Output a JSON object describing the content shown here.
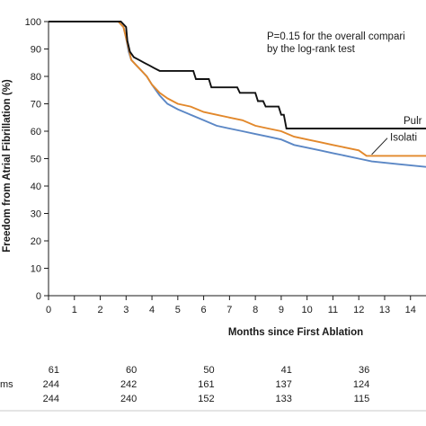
{
  "chart_data": {
    "type": "line",
    "title": "",
    "xlabel": "Months since First Ablation",
    "ylabel": "Freedom from Atrial Fibrillation (%)",
    "xlim": [
      0,
      14.6
    ],
    "ylim": [
      0,
      100
    ],
    "x_ticks": [
      "0",
      "1",
      "2",
      "3",
      "4",
      "5",
      "6",
      "7",
      "8",
      "9",
      "10",
      "11",
      "12",
      "13",
      "14"
    ],
    "y_ticks": [
      "0",
      "10",
      "20",
      "30",
      "40",
      "50",
      "60",
      "70",
      "80",
      "90",
      "100"
    ],
    "grid": false,
    "annotation": [
      "P=0.15 for the overall compari",
      "by the log-rank test"
    ],
    "series": [
      {
        "name": "Pulr",
        "color": "#111111",
        "points": [
          [
            0,
            100
          ],
          [
            2.8,
            100
          ],
          [
            3.0,
            98
          ],
          [
            3.05,
            93
          ],
          [
            3.15,
            89
          ],
          [
            3.3,
            87
          ],
          [
            3.5,
            86
          ],
          [
            3.7,
            85
          ],
          [
            3.9,
            84
          ],
          [
            4.1,
            83
          ],
          [
            4.3,
            82
          ],
          [
            5.6,
            82
          ],
          [
            5.7,
            79
          ],
          [
            6.2,
            79
          ],
          [
            6.3,
            76
          ],
          [
            7.3,
            76
          ],
          [
            7.4,
            74
          ],
          [
            8.0,
            74
          ],
          [
            8.1,
            71
          ],
          [
            8.3,
            71
          ],
          [
            8.4,
            69
          ],
          [
            8.9,
            69
          ],
          [
            9.0,
            66
          ],
          [
            9.1,
            66
          ],
          [
            9.2,
            61
          ],
          [
            14.6,
            61
          ]
        ]
      },
      {
        "name": "Isolati",
        "color": "#e2882b",
        "points": [
          [
            0,
            100
          ],
          [
            2.7,
            100
          ],
          [
            2.9,
            98
          ],
          [
            3.0,
            94
          ],
          [
            3.1,
            90
          ],
          [
            3.2,
            86
          ],
          [
            3.4,
            84
          ],
          [
            3.6,
            82
          ],
          [
            3.8,
            80
          ],
          [
            4.0,
            77
          ],
          [
            4.3,
            74
          ],
          [
            4.6,
            72
          ],
          [
            5.0,
            70
          ],
          [
            5.5,
            69
          ],
          [
            6.0,
            67
          ],
          [
            6.5,
            66
          ],
          [
            7.0,
            65
          ],
          [
            7.5,
            64
          ],
          [
            8.0,
            62
          ],
          [
            8.5,
            61
          ],
          [
            9.0,
            60
          ],
          [
            9.5,
            58
          ],
          [
            10.0,
            57
          ],
          [
            10.5,
            56
          ],
          [
            11.0,
            55
          ],
          [
            11.5,
            54
          ],
          [
            12.0,
            53
          ],
          [
            12.3,
            51
          ],
          [
            14.6,
            51
          ]
        ]
      },
      {
        "name": "",
        "color": "#5b87c5",
        "points": [
          [
            0,
            100
          ],
          [
            2.7,
            100
          ],
          [
            2.9,
            98
          ],
          [
            3.0,
            94
          ],
          [
            3.1,
            89
          ],
          [
            3.2,
            86
          ],
          [
            3.4,
            84
          ],
          [
            3.6,
            82
          ],
          [
            3.8,
            80
          ],
          [
            4.0,
            77
          ],
          [
            4.3,
            73
          ],
          [
            4.6,
            70
          ],
          [
            5.0,
            68
          ],
          [
            5.5,
            66
          ],
          [
            6.0,
            64
          ],
          [
            6.5,
            62
          ],
          [
            7.0,
            61
          ],
          [
            7.5,
            60
          ],
          [
            8.0,
            59
          ],
          [
            8.5,
            58
          ],
          [
            9.0,
            57
          ],
          [
            9.5,
            55
          ],
          [
            10.0,
            54
          ],
          [
            10.5,
            53
          ],
          [
            11.0,
            52
          ],
          [
            11.5,
            51
          ],
          [
            12.0,
            50
          ],
          [
            12.5,
            49
          ],
          [
            13.0,
            48.5
          ],
          [
            13.5,
            48
          ],
          [
            14.6,
            47
          ]
        ]
      }
    ],
    "risk_table": {
      "row_labels": [
        "",
        "ms",
        ""
      ],
      "columns_x": [
        0,
        3,
        6,
        9,
        12
      ],
      "rows": [
        [
          "61",
          "60",
          "50",
          "41",
          "36"
        ],
        [
          "244",
          "242",
          "161",
          "137",
          "124"
        ],
        [
          "244",
          "240",
          "152",
          "133",
          "115"
        ]
      ]
    }
  }
}
